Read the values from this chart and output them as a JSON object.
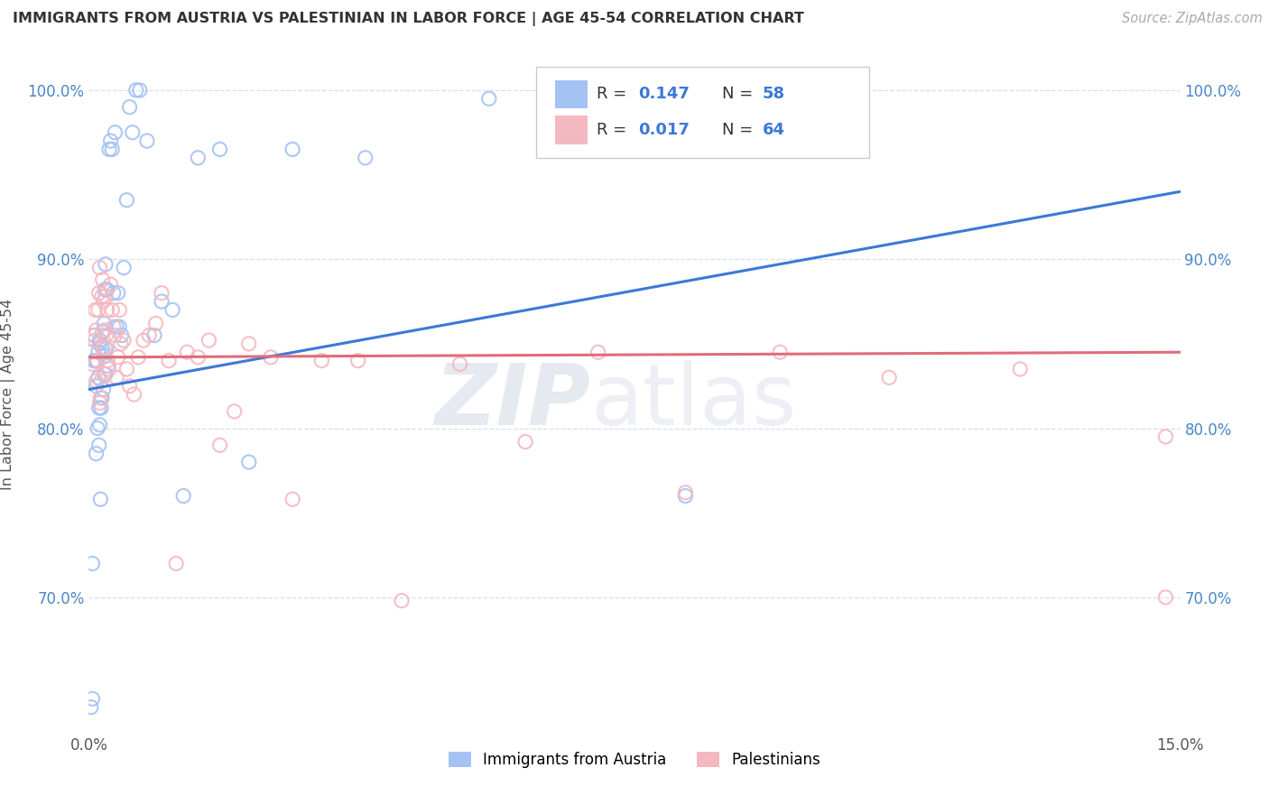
{
  "title": "IMMIGRANTS FROM AUSTRIA VS PALESTINIAN IN LABOR FORCE | AGE 45-54 CORRELATION CHART",
  "source_text": "Source: ZipAtlas.com",
  "ylabel": "In Labor Force | Age 45-54",
  "xlim": [
    0.0,
    0.15
  ],
  "ylim": [
    0.62,
    1.02
  ],
  "ytick_positions": [
    0.7,
    0.8,
    0.9,
    1.0
  ],
  "ytick_labels": [
    "70.0%",
    "80.0%",
    "90.0%",
    "100.0%"
  ],
  "xtick_positions": [
    0.0,
    0.15
  ],
  "xtick_labels": [
    "0.0%",
    "15.0%"
  ],
  "blue_color": "#a4c2f4",
  "pink_color": "#f4b8c1",
  "line_blue": "#3c78d8",
  "line_pink": "#e06c7a",
  "tick_color": "#4a86c8",
  "watermark_part1": "ZIP",
  "watermark_part2": "atlas",
  "blue_line_y0": 0.823,
  "blue_line_y1": 0.94,
  "pink_line_y0": 0.842,
  "pink_line_y1": 0.845,
  "blue_scatter_x": [
    0.0003,
    0.0005,
    0.0005,
    0.0007,
    0.0008,
    0.0008,
    0.001,
    0.001,
    0.001,
    0.0012,
    0.0013,
    0.0013,
    0.0014,
    0.0014,
    0.0015,
    0.0015,
    0.0015,
    0.0016,
    0.0017,
    0.0018,
    0.0018,
    0.0019,
    0.002,
    0.0021,
    0.0022,
    0.0022,
    0.0023,
    0.0023,
    0.0024,
    0.0025,
    0.0026,
    0.0028,
    0.003,
    0.0032,
    0.0034,
    0.0036,
    0.0038,
    0.004,
    0.0042,
    0.0045,
    0.0048,
    0.0052,
    0.0056,
    0.006,
    0.0065,
    0.007,
    0.008,
    0.009,
    0.01,
    0.0115,
    0.013,
    0.015,
    0.018,
    0.022,
    0.028,
    0.038,
    0.055,
    0.082
  ],
  "blue_scatter_y": [
    0.635,
    0.64,
    0.72,
    0.84,
    0.855,
    0.84,
    0.785,
    0.825,
    0.84,
    0.8,
    0.83,
    0.845,
    0.79,
    0.812,
    0.85,
    0.802,
    0.852,
    0.758,
    0.812,
    0.848,
    0.818,
    0.857,
    0.823,
    0.862,
    0.843,
    0.882,
    0.832,
    0.897,
    0.847,
    0.882,
    0.837,
    0.965,
    0.97,
    0.965,
    0.88,
    0.975,
    0.86,
    0.88,
    0.86,
    0.855,
    0.895,
    0.935,
    0.99,
    0.975,
    1.0,
    1.0,
    0.97,
    0.855,
    0.875,
    0.87,
    0.76,
    0.96,
    0.965,
    0.78,
    0.965,
    0.96,
    0.995,
    0.76
  ],
  "pink_scatter_x": [
    0.0003,
    0.0005,
    0.0006,
    0.0008,
    0.0009,
    0.001,
    0.001,
    0.0012,
    0.0013,
    0.0014,
    0.0015,
    0.0015,
    0.0016,
    0.0017,
    0.0018,
    0.0019,
    0.002,
    0.0021,
    0.0022,
    0.0022,
    0.0023,
    0.0024,
    0.0025,
    0.0026,
    0.0028,
    0.003,
    0.0032,
    0.0034,
    0.0036,
    0.0038,
    0.004,
    0.0042,
    0.0044,
    0.0048,
    0.0052,
    0.0056,
    0.0062,
    0.0068,
    0.0075,
    0.0083,
    0.0092,
    0.01,
    0.011,
    0.012,
    0.0135,
    0.015,
    0.0165,
    0.018,
    0.02,
    0.022,
    0.025,
    0.028,
    0.032,
    0.037,
    0.043,
    0.051,
    0.06,
    0.07,
    0.082,
    0.095,
    0.11,
    0.128,
    0.148,
    0.148
  ],
  "pink_scatter_y": [
    0.845,
    0.838,
    0.855,
    0.852,
    0.87,
    0.828,
    0.858,
    0.84,
    0.87,
    0.88,
    0.895,
    0.815,
    0.818,
    0.828,
    0.878,
    0.888,
    0.875,
    0.832,
    0.858,
    0.848,
    0.878,
    0.855,
    0.87,
    0.84,
    0.835,
    0.885,
    0.87,
    0.86,
    0.855,
    0.83,
    0.842,
    0.87,
    0.85,
    0.852,
    0.835,
    0.825,
    0.82,
    0.842,
    0.852,
    0.855,
    0.862,
    0.88,
    0.84,
    0.72,
    0.845,
    0.842,
    0.852,
    0.79,
    0.81,
    0.85,
    0.842,
    0.758,
    0.84,
    0.84,
    0.698,
    0.838,
    0.792,
    0.845,
    0.762,
    0.845,
    0.83,
    0.835,
    0.7,
    0.795
  ]
}
